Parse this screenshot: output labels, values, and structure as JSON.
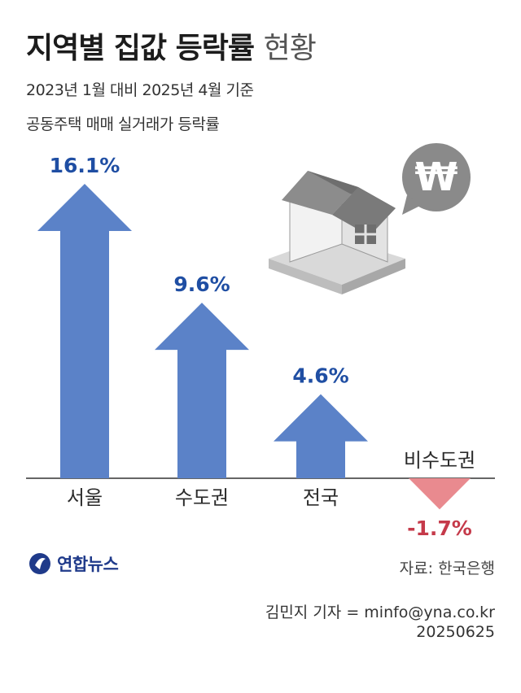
{
  "header": {
    "title_bold": "지역별 집값 등락률",
    "title_light": "현황",
    "subtitle_1": "2023년 1월 대비 2025년 4월 기준",
    "subtitle_2": "공동주택 매매 실거래가 등락률"
  },
  "chart_data": {
    "type": "bar",
    "categories": [
      "서울",
      "수도권",
      "전국",
      "비수도권"
    ],
    "values": [
      16.1,
      9.6,
      4.6,
      -1.7
    ],
    "value_labels": [
      "16.1%",
      "9.6%",
      "4.6%",
      "-1.7%"
    ],
    "colors": {
      "positive_bar": "#5b82c8",
      "negative_bar": "#e98a8f",
      "positive_label": "#1f4ea3",
      "negative_label": "#c53a4a",
      "axis": "#333333"
    }
  },
  "illustration": {
    "icon": "house-icon",
    "bubble_icon": "won-icon",
    "bubble_symbol": "₩"
  },
  "footer": {
    "logo_text": "연합뉴스",
    "source": "자료: 한국은행",
    "credit": "김민지 기자 = minfo@yna.co.kr",
    "date": "20250625"
  }
}
